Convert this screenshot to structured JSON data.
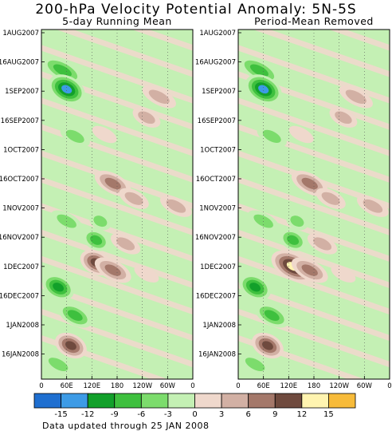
{
  "chart_data": {
    "type": "heatmap",
    "title": "200-hPa Velocity Potential Anomaly: 5N-5S",
    "footnote": "Data updated through 25 JAN 2008",
    "x_ticks": [
      "0",
      "60E",
      "120E",
      "180",
      "120W",
      "60W",
      "0"
    ],
    "y_ticks": [
      "1AUG2007",
      "16AUG2007",
      "1SEP2007",
      "16SEP2007",
      "1OCT2007",
      "16OCT2007",
      "1NOV2007",
      "16NOV2007",
      "1DEC2007",
      "16DEC2007",
      "1JAN2008",
      "16JAN2008"
    ],
    "colorbar": {
      "labels": [
        "-15",
        "-12",
        "-9",
        "-6",
        "-3",
        "0",
        "3",
        "6",
        "9",
        "12",
        "15"
      ],
      "colors": [
        "#1f6fd0",
        "#3d9be6",
        "#12a02a",
        "#3ec03e",
        "#7cdc6c",
        "#c4f0b4",
        "#efd8cc",
        "#d2b0a4",
        "#a4786a",
        "#6f4a3e",
        "#fff4b0",
        "#f7bb3a"
      ]
    },
    "panels": [
      {
        "subtitle": "5-day Running Mean",
        "blobs": [
          {
            "lon": 50,
            "day": 20,
            "value": -9,
            "s": 1.6
          },
          {
            "lon": 60,
            "day": 30,
            "value": -15,
            "s": 1.0
          },
          {
            "lon": 80,
            "day": 55,
            "value": -6,
            "s": 1.4
          },
          {
            "lon": 280,
            "day": 34,
            "value": 6,
            "s": 1.6
          },
          {
            "lon": 250,
            "day": 45,
            "value": 6,
            "s": 1.3
          },
          {
            "lon": 150,
            "day": 54,
            "value": 3,
            "s": 1.5
          },
          {
            "lon": 170,
            "day": 80,
            "value": 9,
            "s": 1.4
          },
          {
            "lon": 220,
            "day": 88,
            "value": 6,
            "s": 1.4
          },
          {
            "lon": 320,
            "day": 92,
            "value": 6,
            "s": 1.5
          },
          {
            "lon": 60,
            "day": 100,
            "value": -6,
            "s": 1.5
          },
          {
            "lon": 140,
            "day": 100,
            "value": -6,
            "s": 1.0
          },
          {
            "lon": 130,
            "day": 110,
            "value": -9,
            "s": 1.0
          },
          {
            "lon": 200,
            "day": 112,
            "value": 6,
            "s": 1.4
          },
          {
            "lon": 130,
            "day": 122,
            "value": 12,
            "s": 1.0
          },
          {
            "lon": 170,
            "day": 126,
            "value": 9,
            "s": 1.4
          },
          {
            "lon": 250,
            "day": 128,
            "value": 3,
            "s": 1.5
          },
          {
            "lon": 40,
            "day": 135,
            "value": -12,
            "s": 1.0
          },
          {
            "lon": 80,
            "day": 150,
            "value": -9,
            "s": 1.3
          },
          {
            "lon": 70,
            "day": 166,
            "value": 12,
            "s": 1.0
          },
          {
            "lon": 40,
            "day": 176,
            "value": -6,
            "s": 1.5
          }
        ]
      },
      {
        "subtitle": "Period-Mean Removed",
        "blobs": [
          {
            "lon": 50,
            "day": 20,
            "value": -9,
            "s": 1.6
          },
          {
            "lon": 60,
            "day": 30,
            "value": -15,
            "s": 1.0
          },
          {
            "lon": 80,
            "day": 55,
            "value": -6,
            "s": 1.4
          },
          {
            "lon": 280,
            "day": 34,
            "value": 6,
            "s": 1.6
          },
          {
            "lon": 250,
            "day": 45,
            "value": 6,
            "s": 1.3
          },
          {
            "lon": 150,
            "day": 54,
            "value": 3,
            "s": 1.5
          },
          {
            "lon": 170,
            "day": 80,
            "value": 9,
            "s": 1.4
          },
          {
            "lon": 220,
            "day": 88,
            "value": 6,
            "s": 1.4
          },
          {
            "lon": 320,
            "day": 92,
            "value": 6,
            "s": 1.5
          },
          {
            "lon": 60,
            "day": 100,
            "value": -6,
            "s": 1.5
          },
          {
            "lon": 140,
            "day": 100,
            "value": -6,
            "s": 1.0
          },
          {
            "lon": 130,
            "day": 110,
            "value": -9,
            "s": 1.0
          },
          {
            "lon": 200,
            "day": 112,
            "value": 6,
            "s": 1.4
          },
          {
            "lon": 130,
            "day": 124,
            "value": 15,
            "s": 1.2
          },
          {
            "lon": 170,
            "day": 126,
            "value": 9,
            "s": 1.4
          },
          {
            "lon": 250,
            "day": 128,
            "value": 3,
            "s": 1.5
          },
          {
            "lon": 40,
            "day": 135,
            "value": -12,
            "s": 1.0
          },
          {
            "lon": 80,
            "day": 150,
            "value": -9,
            "s": 1.3
          },
          {
            "lon": 70,
            "day": 166,
            "value": 12,
            "s": 1.0
          },
          {
            "lon": 40,
            "day": 176,
            "value": -6,
            "s": 1.5
          }
        ]
      }
    ]
  }
}
